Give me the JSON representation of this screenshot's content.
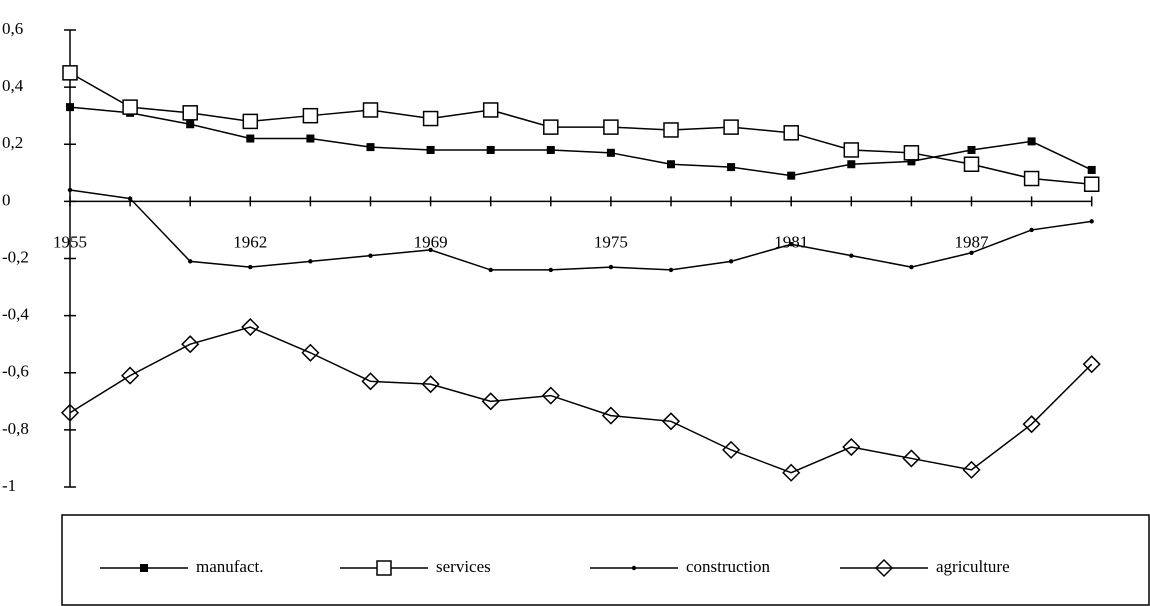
{
  "chart_data": {
    "type": "line",
    "categories": [
      "1955",
      null,
      null,
      "1962",
      null,
      null,
      "1969",
      null,
      null,
      "1975",
      null,
      null,
      "1981",
      null,
      null,
      "1987",
      null,
      null
    ],
    "series": [
      {
        "name": "manufact.",
        "color": "#000000",
        "marker": "filled-square",
        "values": [
          0.33,
          0.31,
          0.27,
          0.22,
          0.22,
          0.19,
          0.18,
          0.18,
          0.18,
          0.17,
          0.13,
          0.12,
          0.09,
          0.13,
          0.14,
          0.18,
          0.21,
          0.11
        ]
      },
      {
        "name": "services",
        "color": "#000000",
        "marker": "open-square",
        "values": [
          0.45,
          0.33,
          0.31,
          0.28,
          0.3,
          0.32,
          0.29,
          0.32,
          0.26,
          0.26,
          0.25,
          0.26,
          0.24,
          0.18,
          0.17,
          0.13,
          0.08,
          0.06
        ]
      },
      {
        "name": "construction",
        "color": "#000000",
        "marker": "dot",
        "values": [
          0.04,
          0.01,
          -0.21,
          -0.23,
          -0.21,
          -0.19,
          -0.17,
          -0.24,
          -0.24,
          -0.23,
          -0.24,
          -0.21,
          -0.15,
          -0.19,
          -0.23,
          -0.18,
          -0.1,
          -0.07
        ]
      },
      {
        "name": "agriculture",
        "color": "#000000",
        "marker": "open-diamond",
        "values": [
          -0.74,
          -0.61,
          -0.5,
          -0.44,
          -0.53,
          -0.63,
          -0.64,
          -0.7,
          -0.68,
          -0.75,
          -0.77,
          -0.87,
          -0.95,
          -0.86,
          -0.9,
          -0.94,
          -0.78,
          -0.57
        ]
      }
    ],
    "ylim": [
      -1,
      0.6
    ],
    "yticks": [
      {
        "value": -1,
        "label": "-1"
      },
      {
        "value": -0.8,
        "label": "-0,8"
      },
      {
        "value": -0.6,
        "label": "-0,6"
      },
      {
        "value": -0.4,
        "label": "-0,4"
      },
      {
        "value": -0.2,
        "label": "-0,2"
      },
      {
        "value": 0,
        "label": "0"
      },
      {
        "value": 0.2,
        "label": "0,2"
      },
      {
        "value": 0.4,
        "label": "0,4"
      },
      {
        "value": 0.6,
        "label": "0,6"
      }
    ],
    "legend": "bottom"
  }
}
